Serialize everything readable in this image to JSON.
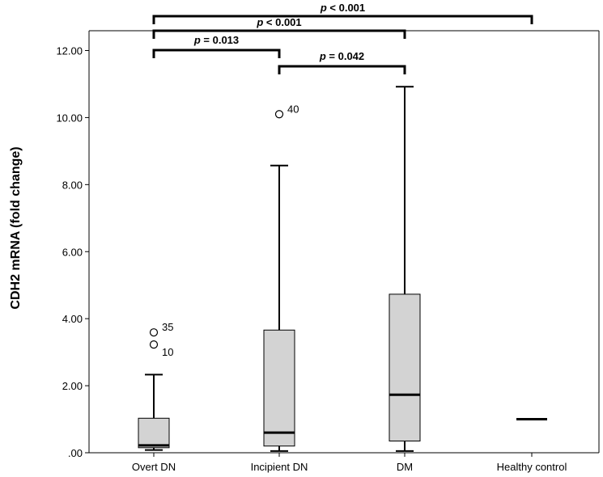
{
  "chart_data": {
    "type": "box",
    "ylabel": "CDH2 mRNA (fold change)",
    "xlabel": "",
    "ylim": [
      0,
      12.0
    ],
    "yticks": [
      0,
      2,
      4,
      6,
      8,
      10,
      12
    ],
    "ytick_labels": [
      ".00",
      "2.00",
      "4.00",
      "6.00",
      "8.00",
      "10.00",
      "12.00"
    ],
    "categories": [
      "Overt DN",
      "Incipient DN",
      "DM",
      "Healthy control"
    ],
    "boxes": [
      {
        "category": "Overt DN",
        "min": 0.08,
        "q1": 0.15,
        "median": 0.22,
        "q3": 1.03,
        "max": 2.33,
        "outliers": [
          {
            "value": 3.59,
            "label": "35"
          },
          {
            "value": 3.23,
            "label": "10"
          }
        ]
      },
      {
        "category": "Incipient DN",
        "min": 0.05,
        "q1": 0.2,
        "median": 0.6,
        "q3": 3.66,
        "max": 8.57,
        "outliers": [
          {
            "value": 10.1,
            "label": "40"
          }
        ]
      },
      {
        "category": "DM",
        "min": 0.05,
        "q1": 0.35,
        "median": 1.73,
        "q3": 4.73,
        "max": 10.92,
        "outliers": []
      },
      {
        "category": "Healthy control",
        "min": 1.0,
        "q1": 1.0,
        "median": 1.0,
        "q3": 1.0,
        "max": 1.0,
        "outliers": []
      }
    ],
    "significance": [
      {
        "from": "Overt DN",
        "to": "Healthy control",
        "label": "p < 0.001",
        "prefix": "p",
        "rest": " < 0.001"
      },
      {
        "from": "Overt DN",
        "to": "DM",
        "label": "p < 0.001",
        "prefix": "p",
        "rest": " < 0.001"
      },
      {
        "from": "Overt DN",
        "to": "Incipient DN",
        "label": "p = 0.013",
        "prefix": "p",
        "rest": " = 0.013"
      },
      {
        "from": "Incipient DN",
        "to": "DM",
        "label": "p = 0.042",
        "prefix": "p",
        "rest": " = 0.042"
      }
    ],
    "box_fill": "#d3d3d3",
    "grid": false,
    "legend": "none"
  }
}
